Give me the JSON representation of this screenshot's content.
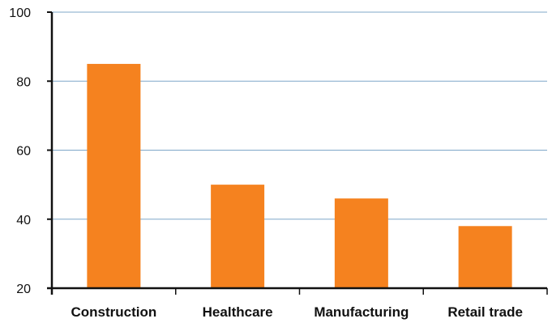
{
  "chart_data": {
    "type": "bar",
    "categories": [
      "Construction",
      "Healthcare",
      "Manufacturing",
      "Retail trade"
    ],
    "values": [
      85,
      50,
      46,
      38
    ],
    "ylim": [
      20,
      100
    ],
    "yticks": [
      20,
      40,
      60,
      80,
      100
    ],
    "grid": true,
    "colors": {
      "bar": "#f5821f",
      "grid": "#7fa7c9",
      "axis": "#111111"
    }
  }
}
